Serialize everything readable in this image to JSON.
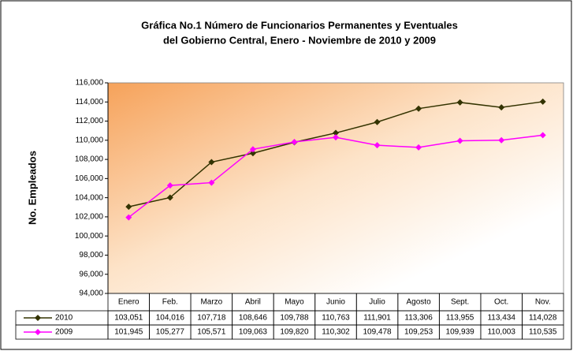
{
  "chart_data": {
    "type": "line",
    "title": [
      "Gráfica No.1  Número de Funcionarios Permanentes y Eventuales",
      "del Gobierno Central, Enero - Noviembre de 2010 y 2009"
    ],
    "y_label": "No. Empleados",
    "categories": [
      "Enero",
      "Feb.",
      "Marzo",
      "Abril",
      "Mayo",
      "Junio",
      "Julio",
      "Agosto",
      "Sept.",
      "Oct.",
      "Nov."
    ],
    "series": [
      {
        "name": "2010",
        "color": "#333300",
        "values": [
          103051,
          104016,
          107718,
          108646,
          109788,
          110763,
          111901,
          113306,
          113955,
          113434,
          114028
        ],
        "value_labels": [
          "103,051",
          "104,016",
          "107,718",
          "108,646",
          "109,788",
          "110,763",
          "111,901",
          "113,306",
          "113,955",
          "113,434",
          "114,028"
        ]
      },
      {
        "name": "2009",
        "color": "#ff00ff",
        "values": [
          101945,
          105277,
          105571,
          109063,
          109820,
          110302,
          109478,
          109253,
          109939,
          110003,
          110535
        ],
        "value_labels": [
          "101,945",
          "105,277",
          "105,571",
          "109,063",
          "109,820",
          "110,302",
          "109,478",
          "109,253",
          "109,939",
          "110,003",
          "110,535"
        ]
      }
    ],
    "ylim": [
      94000,
      116000
    ],
    "yticks": [
      {
        "value": 94000,
        "label": "94,000"
      },
      {
        "value": 96000,
        "label": "96,000"
      },
      {
        "value": 98000,
        "label": "98,000"
      },
      {
        "value": 100000,
        "label": "100,000"
      },
      {
        "value": 102000,
        "label": "102,000"
      },
      {
        "value": 104000,
        "label": "104,000"
      },
      {
        "value": 106000,
        "label": "106,000"
      },
      {
        "value": 108000,
        "label": "108,000"
      },
      {
        "value": 110000,
        "label": "110,000"
      },
      {
        "value": 112000,
        "label": "112,000"
      },
      {
        "value": 114000,
        "label": "114,000"
      },
      {
        "value": 116000,
        "label": "116,000"
      }
    ]
  }
}
